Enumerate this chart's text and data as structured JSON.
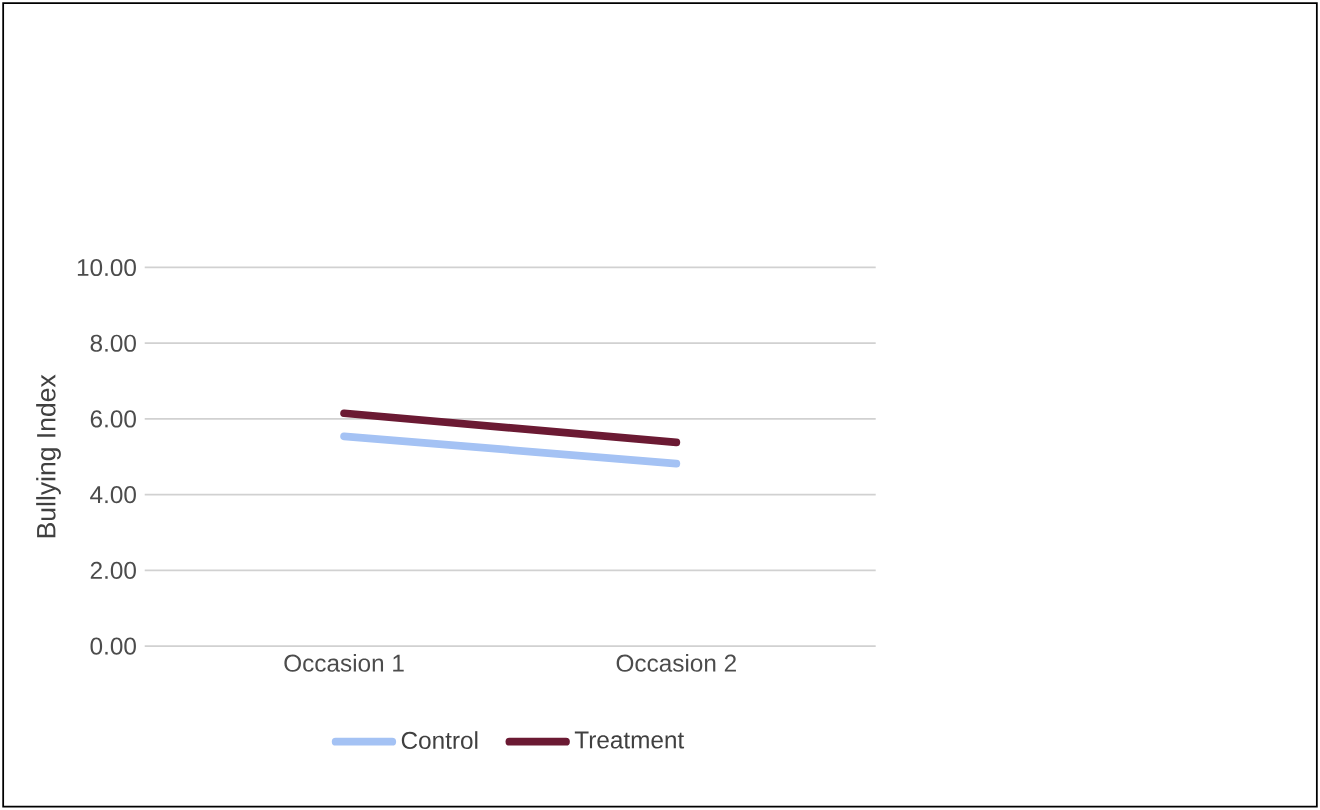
{
  "chart_data": {
    "type": "line",
    "ylabel": "Bullying Index",
    "categories": [
      "Occasion 1",
      "Occasion 2"
    ],
    "series": [
      {
        "name": "Control",
        "color": "#a4c2f4",
        "values": [
          5.54,
          4.82
        ]
      },
      {
        "name": "Treatment",
        "color": "#6b1a33",
        "values": [
          6.15,
          5.38
        ]
      }
    ],
    "ylim": [
      0,
      10
    ],
    "yticks": [
      {
        "value": 0,
        "label": "0.00"
      },
      {
        "value": 2,
        "label": "2.00"
      },
      {
        "value": 4,
        "label": "4.00"
      },
      {
        "value": 6,
        "label": "6.00"
      },
      {
        "value": 8,
        "label": "8.00"
      },
      {
        "value": 10,
        "label": "10.00"
      }
    ],
    "grid": "y",
    "legend": "bottom",
    "marker": "none",
    "line_style": "solid"
  }
}
